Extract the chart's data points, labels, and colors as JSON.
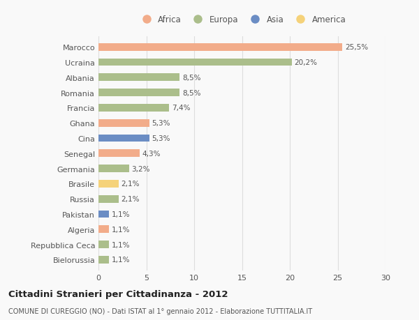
{
  "countries": [
    "Marocco",
    "Ucraina",
    "Albania",
    "Romania",
    "Francia",
    "Ghana",
    "Cina",
    "Senegal",
    "Germania",
    "Brasile",
    "Russia",
    "Pakistan",
    "Algeria",
    "Repubblica Ceca",
    "Bielorussia"
  ],
  "values": [
    25.5,
    20.2,
    8.5,
    8.5,
    7.4,
    5.3,
    5.3,
    4.3,
    3.2,
    2.1,
    2.1,
    1.1,
    1.1,
    1.1,
    1.1
  ],
  "labels": [
    "25,5%",
    "20,2%",
    "8,5%",
    "8,5%",
    "7,4%",
    "5,3%",
    "5,3%",
    "4,3%",
    "3,2%",
    "2,1%",
    "2,1%",
    "1,1%",
    "1,1%",
    "1,1%",
    "1,1%"
  ],
  "continents": [
    "Africa",
    "Europa",
    "Europa",
    "Europa",
    "Europa",
    "Africa",
    "Asia",
    "Africa",
    "Europa",
    "America",
    "Europa",
    "Asia",
    "Africa",
    "Europa",
    "Europa"
  ],
  "continent_colors": {
    "Africa": "#F2AC8A",
    "Europa": "#ABBE8B",
    "Asia": "#6B8DC4",
    "America": "#F5D27A"
  },
  "legend_order": [
    "Africa",
    "Europa",
    "Asia",
    "America"
  ],
  "xlim": [
    0,
    30
  ],
  "xticks": [
    0,
    5,
    10,
    15,
    20,
    25,
    30
  ],
  "title": "Cittadini Stranieri per Cittadinanza - 2012",
  "subtitle": "COMUNE DI CUREGGIO (NO) - Dati ISTAT al 1° gennaio 2012 - Elaborazione TUTTITALIA.IT",
  "background_color": "#f9f9f9",
  "bar_height": 0.5,
  "grid_color": "#dddddd"
}
